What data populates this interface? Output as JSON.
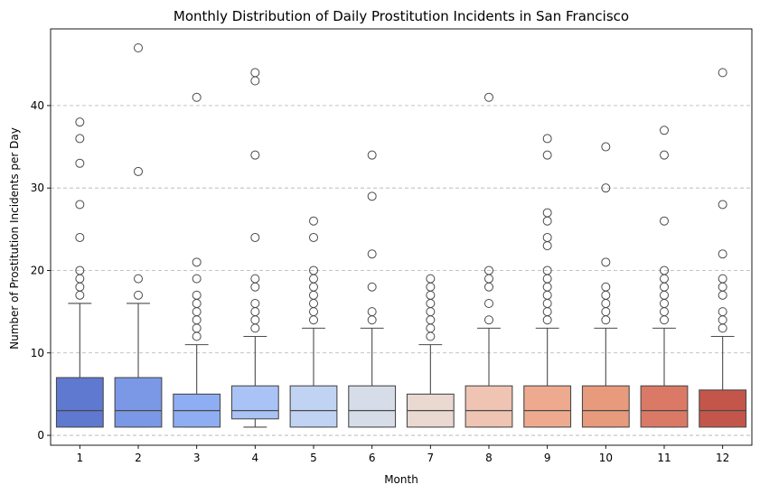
{
  "chart_data": {
    "type": "box",
    "title": "Monthly Distribution of Daily Prostitution Incidents in San Francisco",
    "xlabel": "Month",
    "ylabel": "Number of Prostitution Incidents per Day",
    "ylim": [
      -1.2,
      49.3
    ],
    "yticks": [
      0,
      10,
      20,
      30,
      40
    ],
    "grid": "y-dashed",
    "categories": [
      "1",
      "2",
      "3",
      "4",
      "5",
      "6",
      "7",
      "8",
      "9",
      "10",
      "11",
      "12"
    ],
    "colors": [
      "#5f78d0",
      "#7b98e6",
      "#8fadf2",
      "#a9c3f7",
      "#c1d3f3",
      "#d6dde8",
      "#e9d9d1",
      "#efc4b3",
      "#eeaa8f",
      "#e79a7c",
      "#da7a66",
      "#c4554b"
    ],
    "boxes": [
      {
        "q1": 1,
        "median": 3,
        "q3": 7,
        "whislo": 1,
        "whishi": 16,
        "fliers": [
          17,
          18,
          19,
          20,
          24,
          28,
          33,
          36,
          38
        ]
      },
      {
        "q1": 1,
        "median": 3,
        "q3": 7,
        "whislo": 1,
        "whishi": 16,
        "fliers": [
          17,
          19,
          32,
          47
        ]
      },
      {
        "q1": 1,
        "median": 3,
        "q3": 5,
        "whislo": 1,
        "whishi": 11,
        "fliers": [
          12,
          13,
          14,
          15,
          16,
          17,
          19,
          21,
          41
        ]
      },
      {
        "q1": 2,
        "median": 3,
        "q3": 6,
        "whislo": 1,
        "whishi": 12,
        "fliers": [
          13,
          14,
          15,
          16,
          18,
          19,
          24,
          34,
          43,
          44
        ]
      },
      {
        "q1": 1,
        "median": 3,
        "q3": 6,
        "whislo": 1,
        "whishi": 13,
        "fliers": [
          14,
          15,
          16,
          17,
          18,
          19,
          20,
          24,
          26
        ]
      },
      {
        "q1": 1,
        "median": 3,
        "q3": 6,
        "whislo": 1,
        "whishi": 13,
        "fliers": [
          14,
          15,
          18,
          22,
          29,
          34
        ]
      },
      {
        "q1": 1,
        "median": 3,
        "q3": 5,
        "whislo": 1,
        "whishi": 11,
        "fliers": [
          12,
          13,
          14,
          15,
          16,
          17,
          18,
          19
        ]
      },
      {
        "q1": 1,
        "median": 3,
        "q3": 6,
        "whislo": 1,
        "whishi": 13,
        "fliers": [
          14,
          16,
          18,
          19,
          20,
          41
        ]
      },
      {
        "q1": 1,
        "median": 3,
        "q3": 6,
        "whislo": 1,
        "whishi": 13,
        "fliers": [
          14,
          15,
          16,
          17,
          18,
          19,
          20,
          23,
          24,
          26,
          27,
          34,
          36
        ]
      },
      {
        "q1": 1,
        "median": 3,
        "q3": 6,
        "whislo": 1,
        "whishi": 13,
        "fliers": [
          14,
          15,
          16,
          17,
          18,
          21,
          30,
          35
        ]
      },
      {
        "q1": 1,
        "median": 3,
        "q3": 6,
        "whislo": 1,
        "whishi": 13,
        "fliers": [
          14,
          15,
          16,
          17,
          18,
          19,
          20,
          26,
          34,
          37
        ]
      },
      {
        "q1": 1,
        "median": 3,
        "q3": 5.5,
        "whislo": 1,
        "whishi": 12,
        "fliers": [
          13,
          14,
          15,
          17,
          18,
          19,
          22,
          28,
          44
        ]
      }
    ]
  }
}
